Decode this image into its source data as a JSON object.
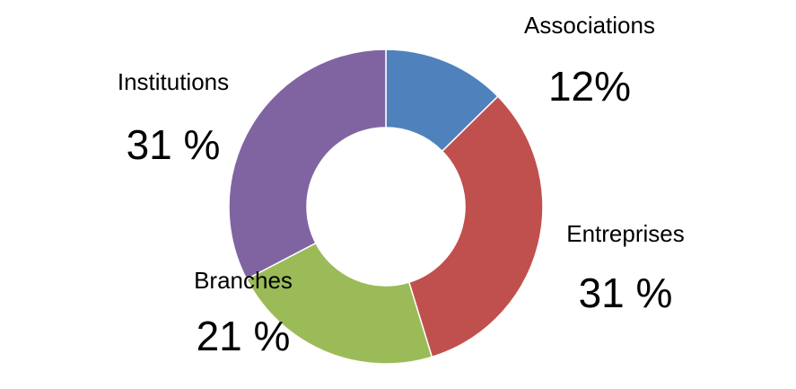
{
  "chart_data": {
    "type": "donut",
    "categories": [
      "Associations",
      "Entreprises",
      "Branches",
      "Institutions"
    ],
    "values": [
      12,
      31,
      21,
      31
    ],
    "value_labels": [
      "12%",
      "31 %",
      "21 %",
      "31 %"
    ],
    "colors": [
      "#4f81bd",
      "#c0504d",
      "#9bbb59",
      "#8064a2"
    ]
  }
}
